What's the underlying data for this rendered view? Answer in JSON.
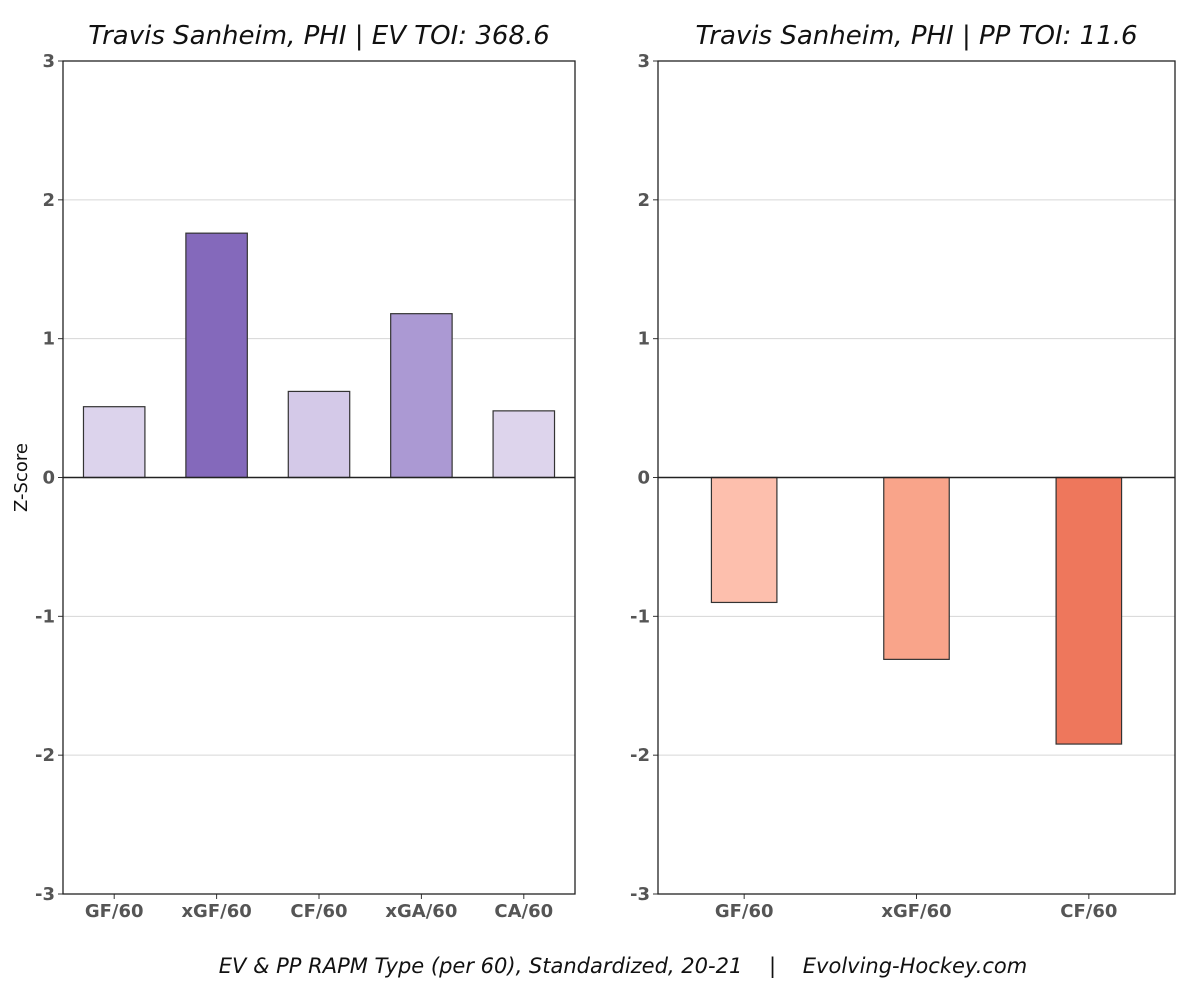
{
  "caption": "EV & PP RAPM Type (per 60), Standardized, 20-21    |    Evolving-Hockey.com",
  "chart_data": [
    {
      "type": "bar",
      "title": "Travis Sanheim, PHI  |  EV TOI: 368.6",
      "ylabel": "Z-Score",
      "xlabel": "",
      "ylim": [
        -3,
        3
      ],
      "yticks": [
        "-3",
        "-2",
        "-1",
        "0",
        "1",
        "2",
        "3"
      ],
      "grid": true,
      "categories": [
        "GF/60",
        "xGF/60",
        "CF/60",
        "xGA/60",
        "CA/60"
      ],
      "values": [
        0.51,
        1.76,
        0.62,
        1.18,
        0.48
      ],
      "colors": [
        "#dcd3ec",
        "#8469bb",
        "#d4c9e8",
        "#ab99d3",
        "#ddd4ec"
      ]
    },
    {
      "type": "bar",
      "title": "Travis Sanheim, PHI  |  PP TOI: 11.6",
      "ylabel": "",
      "xlabel": "",
      "ylim": [
        -3,
        3
      ],
      "yticks": [
        "-3",
        "-2",
        "-1",
        "0",
        "1",
        "2",
        "3"
      ],
      "grid": true,
      "categories": [
        "GF/60",
        "xGF/60",
        "CF/60"
      ],
      "values": [
        -0.9,
        -1.31,
        -1.92
      ],
      "colors": [
        "#fdbfad",
        "#f9a48a",
        "#ee775c"
      ]
    }
  ]
}
